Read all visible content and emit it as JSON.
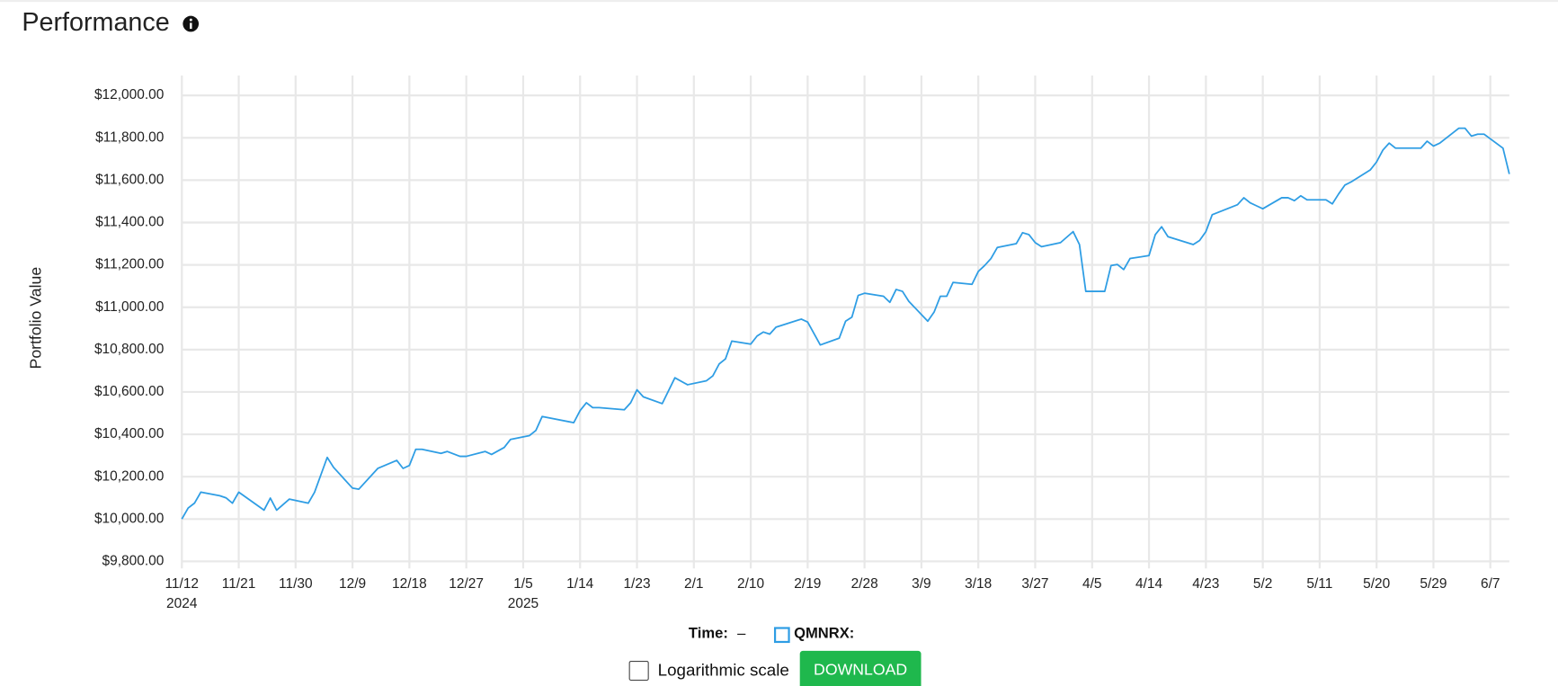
{
  "chart_data": {
    "type": "line",
    "title": "Performance",
    "y_label": "Portfolio Value",
    "x": [
      "2024-11-12",
      "2024-11-13",
      "2024-11-14",
      "2024-11-15",
      "2024-11-18",
      "2024-11-19",
      "2024-11-20",
      "2024-11-21",
      "2024-11-25",
      "2024-11-26",
      "2024-11-27",
      "2024-11-29",
      "2024-12-02",
      "2024-12-03",
      "2024-12-05",
      "2024-12-06",
      "2024-12-09",
      "2024-12-10",
      "2024-12-13",
      "2024-12-16",
      "2024-12-17",
      "2024-12-18",
      "2024-12-19",
      "2024-12-20",
      "2024-12-23",
      "2024-12-24",
      "2024-12-26",
      "2024-12-27",
      "2024-12-30",
      "2024-12-31",
      "2025-01-02",
      "2025-01-03",
      "2025-01-06",
      "2025-01-07",
      "2025-01-08",
      "2025-01-13",
      "2025-01-14",
      "2025-01-15",
      "2025-01-16",
      "2025-01-17",
      "2025-01-21",
      "2025-01-22",
      "2025-01-23",
      "2025-01-24",
      "2025-01-27",
      "2025-01-29",
      "2025-01-31",
      "2025-02-03",
      "2025-02-04",
      "2025-02-05",
      "2025-02-06",
      "2025-02-07",
      "2025-02-10",
      "2025-02-11",
      "2025-02-12",
      "2025-02-13",
      "2025-02-14",
      "2025-02-18",
      "2025-02-19",
      "2025-02-21",
      "2025-02-24",
      "2025-02-25",
      "2025-02-26",
      "2025-02-27",
      "2025-02-28",
      "2025-03-03",
      "2025-03-04",
      "2025-03-05",
      "2025-03-06",
      "2025-03-07",
      "2025-03-10",
      "2025-03-11",
      "2025-03-12",
      "2025-03-13",
      "2025-03-14",
      "2025-03-17",
      "2025-03-18",
      "2025-03-19",
      "2025-03-20",
      "2025-03-21",
      "2025-03-24",
      "2025-03-25",
      "2025-03-26",
      "2025-03-27",
      "2025-03-28",
      "2025-03-31",
      "2025-04-02",
      "2025-04-03",
      "2025-04-04",
      "2025-04-07",
      "2025-04-08",
      "2025-04-09",
      "2025-04-10",
      "2025-04-11",
      "2025-04-14",
      "2025-04-15",
      "2025-04-16",
      "2025-04-17",
      "2025-04-21",
      "2025-04-22",
      "2025-04-23",
      "2025-04-24",
      "2025-04-28",
      "2025-04-29",
      "2025-04-30",
      "2025-05-01",
      "2025-05-02",
      "2025-05-05",
      "2025-05-06",
      "2025-05-07",
      "2025-05-08",
      "2025-05-09",
      "2025-05-12",
      "2025-05-13",
      "2025-05-14",
      "2025-05-15",
      "2025-05-16",
      "2025-05-19",
      "2025-05-20",
      "2025-05-21",
      "2025-05-22",
      "2025-05-23",
      "2025-05-27",
      "2025-05-28",
      "2025-05-29",
      "2025-05-30",
      "2025-06-02",
      "2025-06-03",
      "2025-06-04",
      "2025-06-05",
      "2025-06-06",
      "2025-06-09",
      "2025-06-10"
    ],
    "series": [
      {
        "name": "QMNRX:",
        "color": "#2e9de4",
        "values": [
          10000,
          10052,
          10075,
          10127,
          10110,
          10100,
          10075,
          10127,
          10042,
          10099,
          10042,
          10094,
          10075,
          10127,
          10291,
          10244,
          10146,
          10141,
          10239,
          10277,
          10239,
          10253,
          10329,
          10329,
          10310,
          10319,
          10296,
          10296,
          10319,
          10305,
          10338,
          10376,
          10394,
          10418,
          10484,
          10455,
          10512,
          10549,
          10526,
          10526,
          10516,
          10549,
          10610,
          10577,
          10545,
          10667,
          10634,
          10653,
          10676,
          10732,
          10756,
          10840,
          10826,
          10864,
          10883,
          10873,
          10906,
          10944,
          10930,
          10822,
          10854,
          10934,
          10953,
          11056,
          11066,
          11052,
          11023,
          11084,
          11075,
          11028,
          10934,
          10977,
          11052,
          11052,
          11117,
          11108,
          11169,
          11197,
          11230,
          11282,
          11300,
          11352,
          11343,
          11305,
          11286,
          11305,
          11357,
          11296,
          11075,
          11075,
          11197,
          11202,
          11178,
          11230,
          11244,
          11343,
          11380,
          11333,
          11296,
          11315,
          11357,
          11437,
          11484,
          11517,
          11493,
          11479,
          11465,
          11517,
          11517,
          11503,
          11526,
          11507,
          11507,
          11488,
          11535,
          11577,
          11592,
          11648,
          11686,
          11742,
          11775,
          11751,
          11751,
          11784,
          11761,
          11775,
          11845,
          11845,
          11808,
          11817,
          11817,
          11751,
          11629
        ]
      }
    ],
    "xlim": [
      "2024-11-12",
      "2025-06-10"
    ],
    "ylim": [
      9767,
      12094
    ],
    "xticks": [
      {
        "value": "2024-11-12",
        "label": "11/12"
      },
      {
        "value": "2024-11-21",
        "label": "11/21"
      },
      {
        "value": "2024-11-30",
        "label": "11/30"
      },
      {
        "value": "2024-12-09",
        "label": "12/9"
      },
      {
        "value": "2024-12-18",
        "label": "12/18"
      },
      {
        "value": "2024-12-27",
        "label": "12/27"
      },
      {
        "value": "2025-01-05",
        "label": "1/5"
      },
      {
        "value": "2025-01-14",
        "label": "1/14"
      },
      {
        "value": "2025-01-23",
        "label": "1/23"
      },
      {
        "value": "2025-02-01",
        "label": "2/1"
      },
      {
        "value": "2025-02-10",
        "label": "2/10"
      },
      {
        "value": "2025-02-19",
        "label": "2/19"
      },
      {
        "value": "2025-02-28",
        "label": "2/28"
      },
      {
        "value": "2025-03-09",
        "label": "3/9"
      },
      {
        "value": "2025-03-18",
        "label": "3/18"
      },
      {
        "value": "2025-03-27",
        "label": "3/27"
      },
      {
        "value": "2025-04-05",
        "label": "4/5"
      },
      {
        "value": "2025-04-14",
        "label": "4/14"
      },
      {
        "value": "2025-04-23",
        "label": "4/23"
      },
      {
        "value": "2025-05-02",
        "label": "5/2"
      },
      {
        "value": "2025-05-11",
        "label": "5/11"
      },
      {
        "value": "2025-05-20",
        "label": "5/20"
      },
      {
        "value": "2025-05-29",
        "label": "5/29"
      },
      {
        "value": "2025-06-07",
        "label": "6/7"
      }
    ],
    "year_labels": [
      {
        "value": "2024-11-12",
        "label": "2024"
      },
      {
        "value": "2025-01-05",
        "label": "2025"
      }
    ],
    "yticks": [
      {
        "value": 9800,
        "label": "$9,800.00"
      },
      {
        "value": 10000,
        "label": "$10,000.00"
      },
      {
        "value": 10200,
        "label": "$10,200.00"
      },
      {
        "value": 10400,
        "label": "$10,400.00"
      },
      {
        "value": 10600,
        "label": "$10,600.00"
      },
      {
        "value": 10800,
        "label": "$10,800.00"
      },
      {
        "value": 11000,
        "label": "$11,000.00"
      },
      {
        "value": 11200,
        "label": "$11,200.00"
      },
      {
        "value": 11400,
        "label": "$11,400.00"
      },
      {
        "value": 11600,
        "label": "$11,600.00"
      },
      {
        "value": 11800,
        "label": "$11,800.00"
      },
      {
        "value": 12000,
        "label": "$12,000.00"
      }
    ],
    "grid": true,
    "log_scale": false
  },
  "controls": {
    "time_label": "Time:",
    "time_value": "–",
    "log_label": "Logarithmic scale",
    "download": "DOWNLOAD"
  }
}
